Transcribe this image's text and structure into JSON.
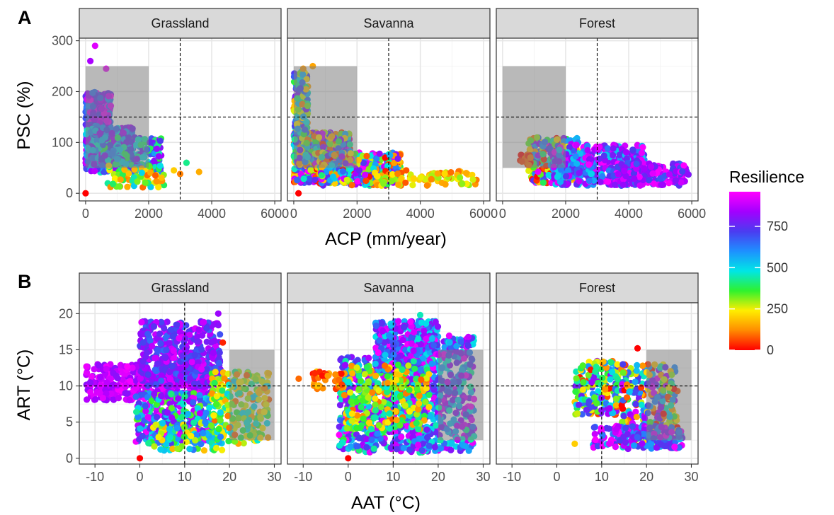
{
  "legend": {
    "title": "Resilience",
    "breaks": [
      "750",
      "500",
      "250",
      "0"
    ],
    "break_values": [
      750,
      500,
      250,
      0
    ],
    "range": [
      0,
      960
    ],
    "colors": [
      "#ff0000",
      "#ff8c00",
      "#ffee00",
      "#2ef22e",
      "#00e6e6",
      "#1e90ff",
      "#4b3cf0",
      "#a300ff",
      "#ff00ff"
    ]
  },
  "chart_data": [
    {
      "tag": "A",
      "type": "scatter",
      "xlabel": "ACP (mm/year)",
      "ylabel": "PSC (%)",
      "xlim": [
        -200,
        6200
      ],
      "ylim": [
        -15,
        305
      ],
      "x_ticks": [
        0,
        2000,
        4000,
        6000
      ],
      "x_tick_labels": [
        "0",
        "2000",
        "4000",
        "6000"
      ],
      "y_ticks": [
        0,
        100,
        200,
        300
      ],
      "y_tick_labels": [
        "0",
        "100",
        "200",
        "300"
      ],
      "ref_lines": {
        "x": 3000,
        "y": 150
      },
      "shaded_region": {
        "x": [
          0,
          2000
        ],
        "y": [
          50,
          250
        ]
      },
      "facets": [
        {
          "label": "Grassland",
          "clusters": [
            {
              "n": 420,
              "x": [
                0,
                800
              ],
              "y": [
                50,
                200
              ],
              "r": [
                600,
                960
              ]
            },
            {
              "n": 320,
              "x": [
                0,
                1500
              ],
              "y": [
                40,
                130
              ],
              "r": [
                450,
                900
              ]
            },
            {
              "n": 200,
              "x": [
                500,
                2400
              ],
              "y": [
                40,
                110
              ],
              "r": [
                350,
                850
              ]
            },
            {
              "n": 70,
              "x": [
                700,
                2500
              ],
              "y": [
                10,
                55
              ],
              "r": [
                80,
                520
              ]
            }
          ],
          "points": [
            {
              "x": 0,
              "y": 0,
              "r": 0
            },
            {
              "x": 150,
              "y": 260,
              "r": 850
            },
            {
              "x": 300,
              "y": 290,
              "r": 920
            },
            {
              "x": 650,
              "y": 245,
              "r": 940
            },
            {
              "x": 3200,
              "y": 60,
              "r": 420
            },
            {
              "x": 3600,
              "y": 42,
              "r": 160
            },
            {
              "x": 3000,
              "y": 38,
              "r": 110
            },
            {
              "x": 2800,
              "y": 45,
              "r": 200
            }
          ]
        },
        {
          "label": "Savanna",
          "clusters": [
            {
              "n": 520,
              "x": [
                0,
                1800
              ],
              "y": [
                20,
                120
              ],
              "r": [
                0,
                960
              ]
            },
            {
              "n": 160,
              "x": [
                0,
                450
              ],
              "y": [
                60,
                240
              ],
              "r": [
                100,
                800
              ]
            },
            {
              "n": 380,
              "x": [
                800,
                3400
              ],
              "y": [
                15,
                80
              ],
              "r": [
                0,
                960
              ]
            },
            {
              "n": 90,
              "x": [
                2500,
                5800
              ],
              "y": [
                15,
                45
              ],
              "r": [
                60,
                320
              ]
            }
          ],
          "points": [
            {
              "x": 150,
              "y": 0,
              "r": 0
            },
            {
              "x": 300,
              "y": 245,
              "r": 140
            },
            {
              "x": 600,
              "y": 250,
              "r": 150
            }
          ]
        },
        {
          "label": "Forest",
          "clusters": [
            {
              "n": 280,
              "x": [
                800,
                2400
              ],
              "y": [
                20,
                110
              ],
              "r": [
                0,
                960
              ]
            },
            {
              "n": 420,
              "x": [
                1600,
                4500
              ],
              "y": [
                15,
                95
              ],
              "r": [
                500,
                960
              ]
            },
            {
              "n": 160,
              "x": [
                3500,
                5900
              ],
              "y": [
                15,
                60
              ],
              "r": [
                650,
                960
              ]
            },
            {
              "n": 20,
              "x": [
                500,
                900
              ],
              "y": [
                55,
                80
              ],
              "r": [
                0,
                120
              ]
            }
          ],
          "points": []
        }
      ]
    },
    {
      "tag": "B",
      "type": "scatter",
      "xlabel": "AAT (°C)",
      "ylabel": "ART (°C)",
      "xlim": [
        -13.5,
        31.5
      ],
      "ylim": [
        -0.8,
        21.5
      ],
      "x_ticks": [
        -10,
        0,
        10,
        20,
        30
      ],
      "x_tick_labels": [
        "-10",
        "0",
        "10",
        "20",
        "30"
      ],
      "y_ticks": [
        0,
        5,
        10,
        15,
        20
      ],
      "y_tick_labels": [
        "0",
        "5",
        "10",
        "15",
        "20"
      ],
      "ref_lines": {
        "x": 10,
        "y": 10
      },
      "shaded_region": {
        "x": [
          20,
          30
        ],
        "y": [
          2.5,
          15
        ]
      },
      "facets": [
        {
          "label": "Grassland",
          "clusters": [
            {
              "n": 420,
              "x": [
                -12,
                16
              ],
              "y": [
                8,
                13
              ],
              "r": [
                800,
                960
              ]
            },
            {
              "n": 420,
              "x": [
                0,
                18
              ],
              "y": [
                10,
                19
              ],
              "r": [
                650,
                920
              ]
            },
            {
              "n": 360,
              "x": [
                -1,
                17
              ],
              "y": [
                2,
                9
              ],
              "r": [
                300,
                960
              ]
            },
            {
              "n": 220,
              "x": [
                16,
                29
              ],
              "y": [
                2,
                12
              ],
              "r": [
                80,
                520
              ]
            },
            {
              "n": 90,
              "x": [
                3,
                19
              ],
              "y": [
                1,
                5
              ],
              "r": [
                150,
                650
              ]
            }
          ],
          "points": [
            {
              "x": 0,
              "y": 0,
              "r": 0
            },
            {
              "x": 17.5,
              "y": 20,
              "r": 830
            },
            {
              "x": 18.5,
              "y": 16,
              "r": 30
            }
          ]
        },
        {
          "label": "Savanna",
          "clusters": [
            {
              "n": 650,
              "x": [
                -2,
                18
              ],
              "y": [
                0.8,
                14
              ],
              "r": [
                350,
                960
              ]
            },
            {
              "n": 420,
              "x": [
                6,
                20
              ],
              "y": [
                12,
                19
              ],
              "r": [
                480,
                960
              ]
            },
            {
              "n": 450,
              "x": [
                14,
                28
              ],
              "y": [
                1,
                17
              ],
              "r": [
                420,
                960
              ]
            },
            {
              "n": 220,
              "x": [
                -1,
                18
              ],
              "y": [
                4,
                13
              ],
              "r": [
                80,
                480
              ]
            },
            {
              "n": 40,
              "x": [
                -8,
                -1
              ],
              "y": [
                9.5,
                12
              ],
              "r": [
                0,
                200
              ]
            }
          ],
          "points": [
            {
              "x": 0,
              "y": 0,
              "r": 0
            },
            {
              "x": -11,
              "y": 11,
              "r": 90
            },
            {
              "x": 16,
              "y": 19.8,
              "r": 450
            }
          ]
        },
        {
          "label": "Forest",
          "clusters": [
            {
              "n": 200,
              "x": [
                4,
                14
              ],
              "y": [
                6,
                13.5
              ],
              "r": [
                0,
                850
              ]
            },
            {
              "n": 320,
              "x": [
                14,
                27
              ],
              "y": [
                1.5,
                13
              ],
              "r": [
                0,
                960
              ]
            },
            {
              "n": 160,
              "x": [
                8,
                28
              ],
              "y": [
                1.3,
                4.5
              ],
              "r": [
                550,
                960
              ]
            }
          ],
          "points": [
            {
              "x": 18,
              "y": 15.2,
              "r": 0
            },
            {
              "x": 4,
              "y": 2,
              "r": 200
            }
          ]
        }
      ]
    }
  ]
}
